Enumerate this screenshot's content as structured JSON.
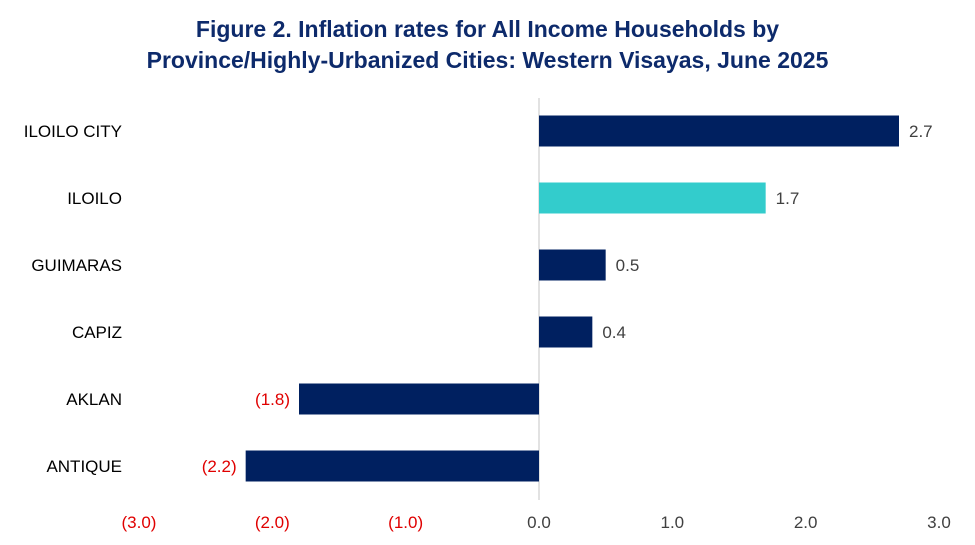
{
  "title": {
    "line1": "Figure 2. Inflation rates for All Income Households by",
    "line2": "Province/Highly-Urbanized Cities: Western Visayas, June 2025"
  },
  "colors": {
    "title": "#0d2a6b",
    "bar_default": "#002060",
    "bar_highlight": "#33cccc",
    "negative_text": "#e00000",
    "positive_text": "#404040",
    "axis_line": "#d9d9d9"
  },
  "chart_data": {
    "type": "bar",
    "orientation": "horizontal",
    "title": "Figure 2. Inflation rates for All Income Households by Province/Highly-Urbanized Cities: Western Visayas, June 2025",
    "categories": [
      "ILOILO CITY",
      "ILOILO",
      "GUIMARAS",
      "CAPIZ",
      "AKLAN",
      "ANTIQUE"
    ],
    "values": [
      2.7,
      1.7,
      0.5,
      0.4,
      -1.8,
      -2.2
    ],
    "data_labels": [
      "2.7",
      "1.7",
      "0.5",
      "0.4",
      "(1.8)",
      "(2.2)"
    ],
    "highlight": [
      false,
      true,
      false,
      false,
      false,
      false
    ],
    "xlim": [
      -3.0,
      3.0
    ],
    "ticks": [
      -3.0,
      -2.0,
      -1.0,
      0.0,
      1.0,
      2.0,
      3.0
    ],
    "tick_labels": [
      "(3.0)",
      "(2.0)",
      "(1.0)",
      "0.0",
      "1.0",
      "2.0",
      "3.0"
    ],
    "xlabel": "",
    "ylabel": "",
    "grid": false,
    "legend": "none"
  }
}
